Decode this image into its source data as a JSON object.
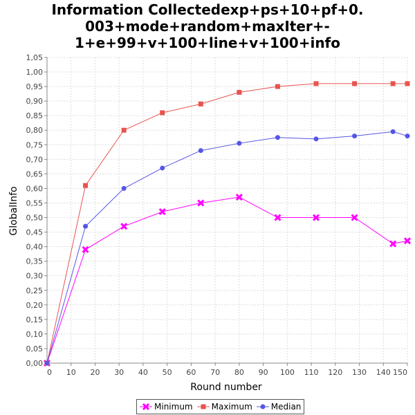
{
  "chart_data": {
    "type": "line",
    "title_lines": [
      "Information Collectedexp+ps+10+pf+0.",
      "003+mode+random+maxIter+-",
      "1+e+99+v+100+line+v+100+info"
    ],
    "xlabel": "Round number",
    "ylabel": "GlobalInfo",
    "xlim": [
      0,
      150
    ],
    "ylim": [
      0,
      1.05
    ],
    "xticks": [
      "0",
      "10",
      "20",
      "30",
      "40",
      "50",
      "60",
      "70",
      "80",
      "90",
      "100",
      "110",
      "120",
      "130",
      "140",
      "150"
    ],
    "yticks": [
      "0,00",
      "0,05",
      "0,10",
      "0,15",
      "0,20",
      "0,25",
      "0,30",
      "0,35",
      "0,40",
      "0,45",
      "0,50",
      "0,55",
      "0,60",
      "0,65",
      "0,70",
      "0,75",
      "0,80",
      "0,85",
      "0,90",
      "0,95",
      "1,00",
      "1,05"
    ],
    "grid": true,
    "legend_position": "bottom-center",
    "series": [
      {
        "name": "Minimum",
        "color": "#ff00ff",
        "marker": "x",
        "x": [
          0,
          16,
          32,
          48,
          64,
          80,
          96,
          112,
          128,
          144,
          150
        ],
        "y": [
          0.0,
          0.39,
          0.47,
          0.52,
          0.55,
          0.57,
          0.5,
          0.5,
          0.5,
          0.41,
          0.42
        ]
      },
      {
        "name": "Maximum",
        "color": "#e8534f",
        "marker": "square",
        "x": [
          0,
          16,
          32,
          48,
          64,
          80,
          96,
          112,
          128,
          144,
          150
        ],
        "y": [
          0.0,
          0.61,
          0.8,
          0.86,
          0.89,
          0.93,
          0.95,
          0.96,
          0.96,
          0.96,
          0.96
        ]
      },
      {
        "name": "Median",
        "color": "#5555e6",
        "marker": "circle",
        "x": [
          0,
          16,
          32,
          48,
          64,
          80,
          96,
          112,
          128,
          144,
          150
        ],
        "y": [
          0.0,
          0.47,
          0.6,
          0.67,
          0.73,
          0.755,
          0.775,
          0.77,
          0.78,
          0.795,
          0.78
        ]
      }
    ]
  }
}
